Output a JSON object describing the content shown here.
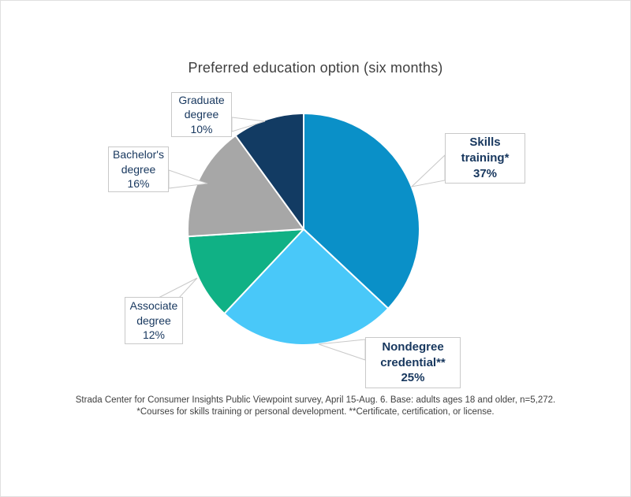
{
  "title": "Preferred education option (six months)",
  "chart_data": {
    "type": "pie",
    "title": "Preferred education option (six months)",
    "categories": [
      "Skills training*",
      "Nondegree credential**",
      "Associate degree",
      "Bachelor's degree",
      "Graduate degree"
    ],
    "values": [
      37,
      25,
      12,
      16,
      10
    ],
    "unit": "%",
    "colors": [
      "#0a90c8",
      "#49c8f9",
      "#10b185",
      "#a7a7a7",
      "#123b63"
    ],
    "start_angle_deg": 0,
    "direction": "clockwise",
    "legend": "none",
    "labels": [
      {
        "text": "Skills\ntraining*\n37%",
        "bold": true
      },
      {
        "text": "Nondegree\ncredential**\n25%",
        "bold": true
      },
      {
        "text": "Associate\ndegree\n12%",
        "bold": false
      },
      {
        "text": "Bachelor's\ndegree\n16%",
        "bold": false
      },
      {
        "text": "Graduate\ndegree\n10%",
        "bold": false
      }
    ]
  },
  "footnotes": [
    "Strada Center for Consumer Insights Public Viewpoint survey, April 15-Aug. 6. Base: adults ages 18 and older, n=5,272.",
    "*Courses for skills training or personal development. **Certificate, certification, or license."
  ]
}
